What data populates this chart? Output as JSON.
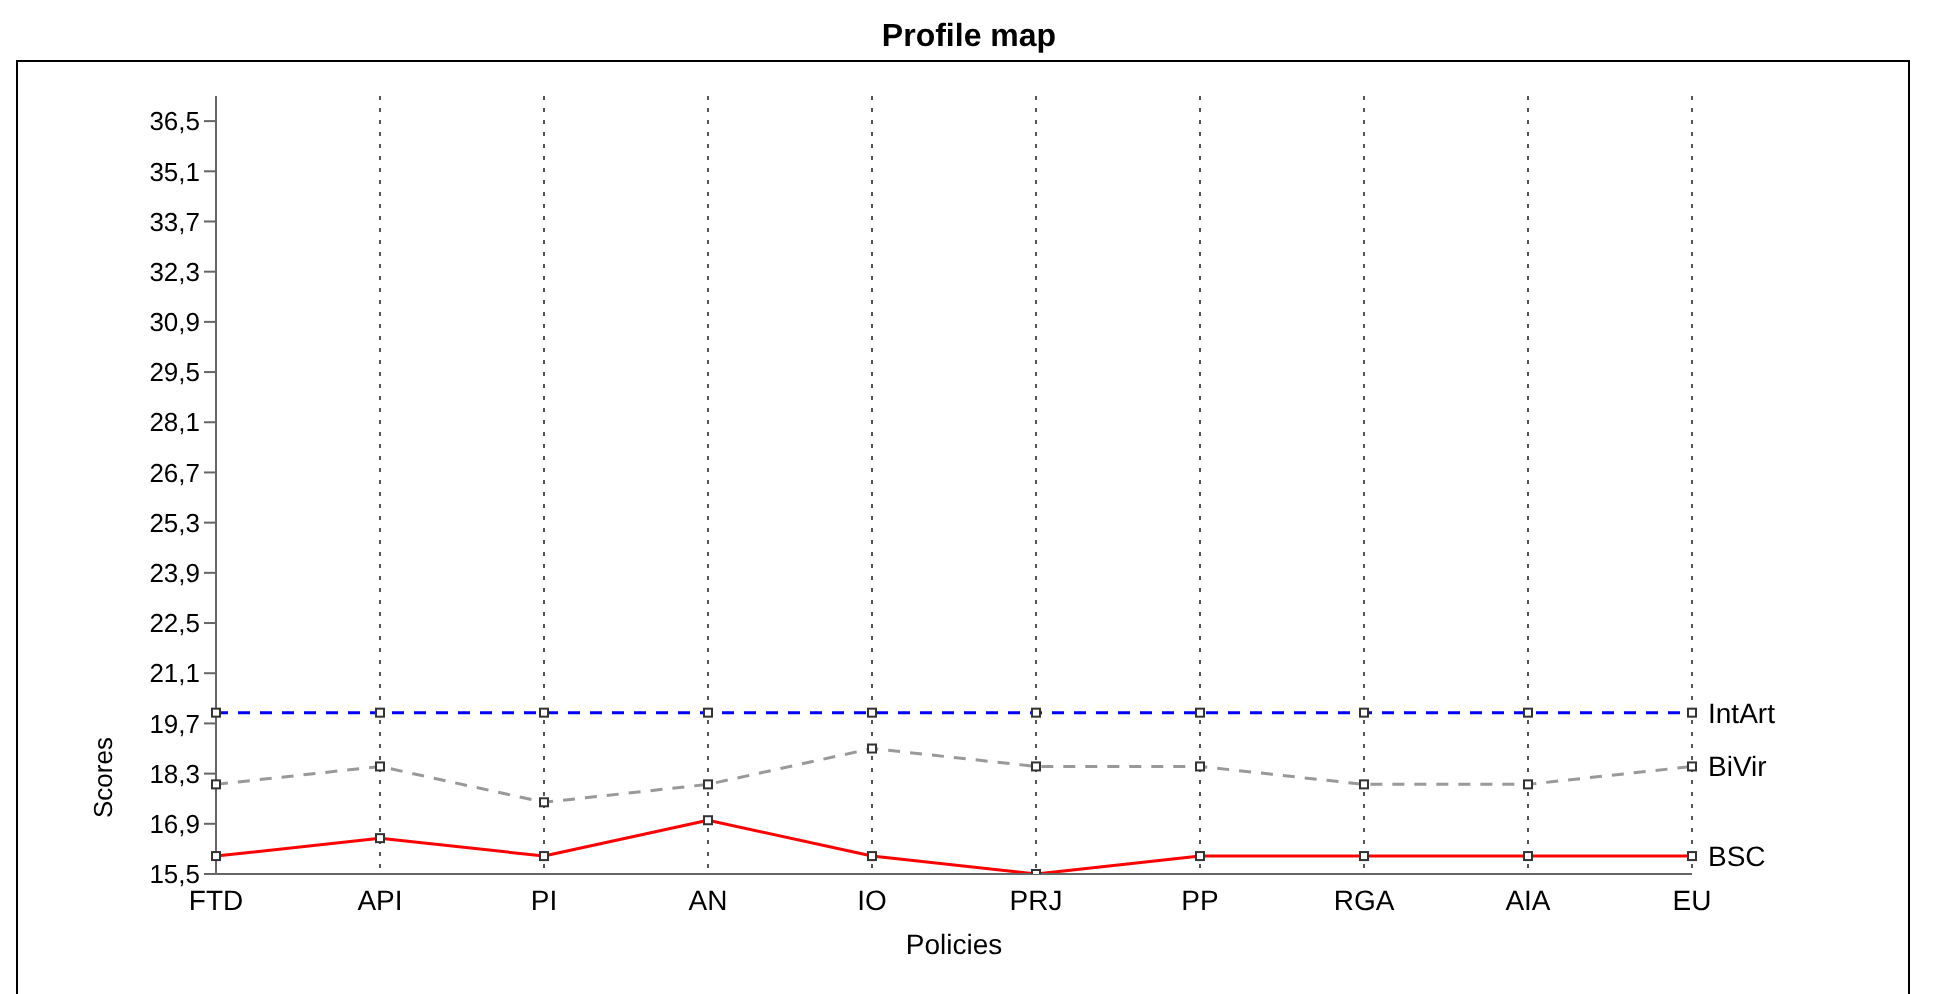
{
  "chart_data": {
    "type": "line",
    "title": "Profile map",
    "xlabel": "Policies",
    "ylabel": "Scores",
    "categories": [
      "FTD",
      "API",
      "PI",
      "AN",
      "IO",
      "PRJ",
      "PP",
      "RGA",
      "AIA",
      "EU"
    ],
    "series": [
      {
        "name": "IntArt",
        "color": "#0000ff",
        "line_style": "dashed",
        "values": [
          20,
          20,
          20,
          20,
          20,
          20,
          20,
          20,
          20,
          20
        ]
      },
      {
        "name": "BiVir",
        "color": "#999999",
        "line_style": "dashed",
        "values": [
          18,
          18.5,
          17.5,
          18,
          19,
          18.5,
          18.5,
          18,
          18,
          18.5
        ]
      },
      {
        "name": "BSC",
        "color": "#ff0000",
        "line_style": "solid",
        "values": [
          16,
          16.5,
          16,
          17,
          16,
          15.5,
          16,
          16,
          16,
          16
        ]
      }
    ],
    "ylim": [
      15.5,
      37.2
    ],
    "yticks": [
      {
        "value": 15.5,
        "label": "15,5"
      },
      {
        "value": 16.9,
        "label": "16,9"
      },
      {
        "value": 18.3,
        "label": "18,3"
      },
      {
        "value": 19.7,
        "label": "19,7"
      },
      {
        "value": 21.1,
        "label": "21,1"
      },
      {
        "value": 22.5,
        "label": "22,5"
      },
      {
        "value": 23.9,
        "label": "23,9"
      },
      {
        "value": 25.3,
        "label": "25,3"
      },
      {
        "value": 26.7,
        "label": "26,7"
      },
      {
        "value": 28.1,
        "label": "28,1"
      },
      {
        "value": 29.5,
        "label": "29,5"
      },
      {
        "value": 30.9,
        "label": "30,9"
      },
      {
        "value": 32.3,
        "label": "32,3"
      },
      {
        "value": 33.7,
        "label": "33,7"
      },
      {
        "value": 35.1,
        "label": "35,1"
      },
      {
        "value": 36.5,
        "label": "36,5"
      }
    ],
    "grid": "x",
    "legend": false,
    "marker": "square"
  }
}
